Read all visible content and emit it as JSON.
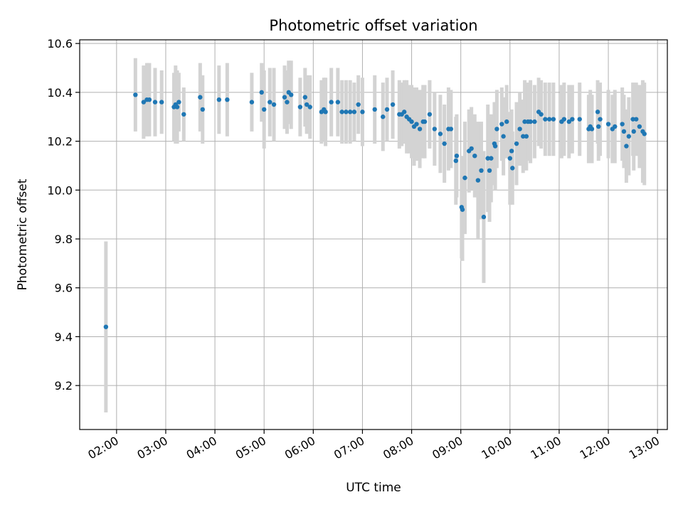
{
  "chart_data": {
    "type": "scatter",
    "title": "Photometric offset variation",
    "xlabel": "UTC time",
    "ylabel": "Photometric offset",
    "x_ticks": [
      "02:00",
      "03:00",
      "04:00",
      "05:00",
      "06:00",
      "07:00",
      "08:00",
      "09:00",
      "10:00",
      "11:00",
      "12:00",
      "13:00"
    ],
    "x_tick_hours": [
      2,
      3,
      4,
      5,
      6,
      7,
      8,
      9,
      10,
      11,
      12,
      13
    ],
    "xlim_hours": [
      1.25,
      13.2
    ],
    "y_ticks": [
      "9.2",
      "9.4",
      "9.6",
      "9.8",
      "10.0",
      "10.2",
      "10.4",
      "10.6"
    ],
    "ylim": [
      9.02,
      10.615
    ],
    "grid": true,
    "colors": {
      "marker": "#1f77b4",
      "errorbar": "#d3d3d3",
      "grid": "#b0b0b0"
    },
    "series": [
      {
        "x": [
          "01:47",
          "02:23",
          "02:33",
          "02:37",
          "02:40",
          "02:47",
          "02:55",
          "03:10",
          "03:12",
          "03:14",
          "03:16",
          "03:22",
          "03:42",
          "03:45",
          "04:05",
          "04:15",
          "04:45",
          "04:57",
          "05:00",
          "05:07",
          "05:12",
          "05:25",
          "05:28",
          "05:30",
          "05:33",
          "05:44",
          "05:50",
          "05:52",
          "05:56",
          "06:10",
          "06:13",
          "06:15",
          "06:22",
          "06:30",
          "06:35",
          "06:40",
          "06:45",
          "06:50",
          "06:55",
          "07:00",
          "07:15",
          "07:25",
          "07:30",
          "07:37",
          "07:45",
          "07:48",
          "07:51",
          "07:54",
          "07:57",
          "08:00",
          "08:03",
          "08:06",
          "08:10",
          "08:14",
          "08:16",
          "08:22",
          "08:28",
          "08:35",
          "08:40",
          "08:45",
          "08:48",
          "08:54",
          "08:55",
          "09:01",
          "09:02",
          "09:05",
          "09:10",
          "09:13",
          "09:17",
          "09:21",
          "09:25",
          "09:28",
          "09:33",
          "09:35",
          "09:37",
          "09:41",
          "09:42",
          "09:44",
          "09:50",
          "09:52",
          "09:56",
          "10:00",
          "10:02",
          "10:03",
          "10:08",
          "10:12",
          "10:16",
          "10:18",
          "10:20",
          "10:22",
          "10:25",
          "10:30",
          "10:35",
          "10:38",
          "10:43",
          "10:48",
          "10:53",
          "11:03",
          "11:06",
          "11:12",
          "11:16",
          "11:25",
          "11:36",
          "11:38",
          "11:40",
          "11:47",
          "11:48",
          "11:50",
          "12:00",
          "12:05",
          "12:08",
          "12:17",
          "12:19",
          "12:22",
          "12:25",
          "12:30",
          "12:31",
          "12:34",
          "12:38",
          "12:42",
          "12:44"
        ],
        "y": [
          9.44,
          10.39,
          10.36,
          10.37,
          10.37,
          10.36,
          10.36,
          10.34,
          10.35,
          10.34,
          10.36,
          10.31,
          10.38,
          10.33,
          10.37,
          10.37,
          10.36,
          10.4,
          10.33,
          10.36,
          10.35,
          10.38,
          10.36,
          10.4,
          10.39,
          10.34,
          10.38,
          10.35,
          10.34,
          10.32,
          10.33,
          10.32,
          10.36,
          10.36,
          10.32,
          10.32,
          10.32,
          10.32,
          10.35,
          10.32,
          10.33,
          10.3,
          10.33,
          10.35,
          10.31,
          10.31,
          10.32,
          10.3,
          10.29,
          10.28,
          10.26,
          10.27,
          10.25,
          10.28,
          10.28,
          10.31,
          10.25,
          10.23,
          10.19,
          10.25,
          10.25,
          10.12,
          10.14,
          9.93,
          9.92,
          10.05,
          10.16,
          10.17,
          10.14,
          10.04,
          10.08,
          9.89,
          10.13,
          10.08,
          10.13,
          10.19,
          10.18,
          10.25,
          10.27,
          10.22,
          10.28,
          10.13,
          10.16,
          10.09,
          10.19,
          10.25,
          10.22,
          10.28,
          10.22,
          10.28,
          10.28,
          10.28,
          10.32,
          10.31,
          10.29,
          10.29,
          10.29,
          10.28,
          10.29,
          10.28,
          10.29,
          10.29,
          10.25,
          10.26,
          10.25,
          10.32,
          10.26,
          10.29,
          10.27,
          10.25,
          10.26,
          10.27,
          10.24,
          10.18,
          10.22,
          10.29,
          10.24,
          10.29,
          10.26,
          10.24,
          10.23
        ],
        "err": [
          0.35,
          0.15,
          0.15,
          0.15,
          0.15,
          0.14,
          0.13,
          0.14,
          0.16,
          0.15,
          0.12,
          0.11,
          0.14,
          0.14,
          0.14,
          0.15,
          0.12,
          0.12,
          0.16,
          0.14,
          0.15,
          0.13,
          0.13,
          0.13,
          0.14,
          0.12,
          0.12,
          0.12,
          0.13,
          0.13,
          0.13,
          0.14,
          0.14,
          0.14,
          0.13,
          0.13,
          0.13,
          0.12,
          0.12,
          0.14,
          0.14,
          0.14,
          0.13,
          0.14,
          0.14,
          0.13,
          0.13,
          0.15,
          0.14,
          0.15,
          0.16,
          0.15,
          0.16,
          0.15,
          0.15,
          0.14,
          0.15,
          0.16,
          0.16,
          0.17,
          0.16,
          0.18,
          0.17,
          0.21,
          0.21,
          0.23,
          0.17,
          0.17,
          0.17,
          0.24,
          0.2,
          0.27,
          0.22,
          0.21,
          0.18,
          0.17,
          0.18,
          0.16,
          0.15,
          0.16,
          0.15,
          0.19,
          0.17,
          0.15,
          0.17,
          0.15,
          0.15,
          0.17,
          0.14,
          0.16,
          0.17,
          0.15,
          0.14,
          0.14,
          0.15,
          0.15,
          0.15,
          0.15,
          0.15,
          0.15,
          0.14,
          0.15,
          0.14,
          0.15,
          0.14,
          0.13,
          0.14,
          0.15,
          0.14,
          0.14,
          0.15,
          0.15,
          0.15,
          0.15,
          0.16,
          0.15,
          0.16,
          0.15,
          0.17,
          0.21,
          0.21
        ]
      }
    ]
  }
}
